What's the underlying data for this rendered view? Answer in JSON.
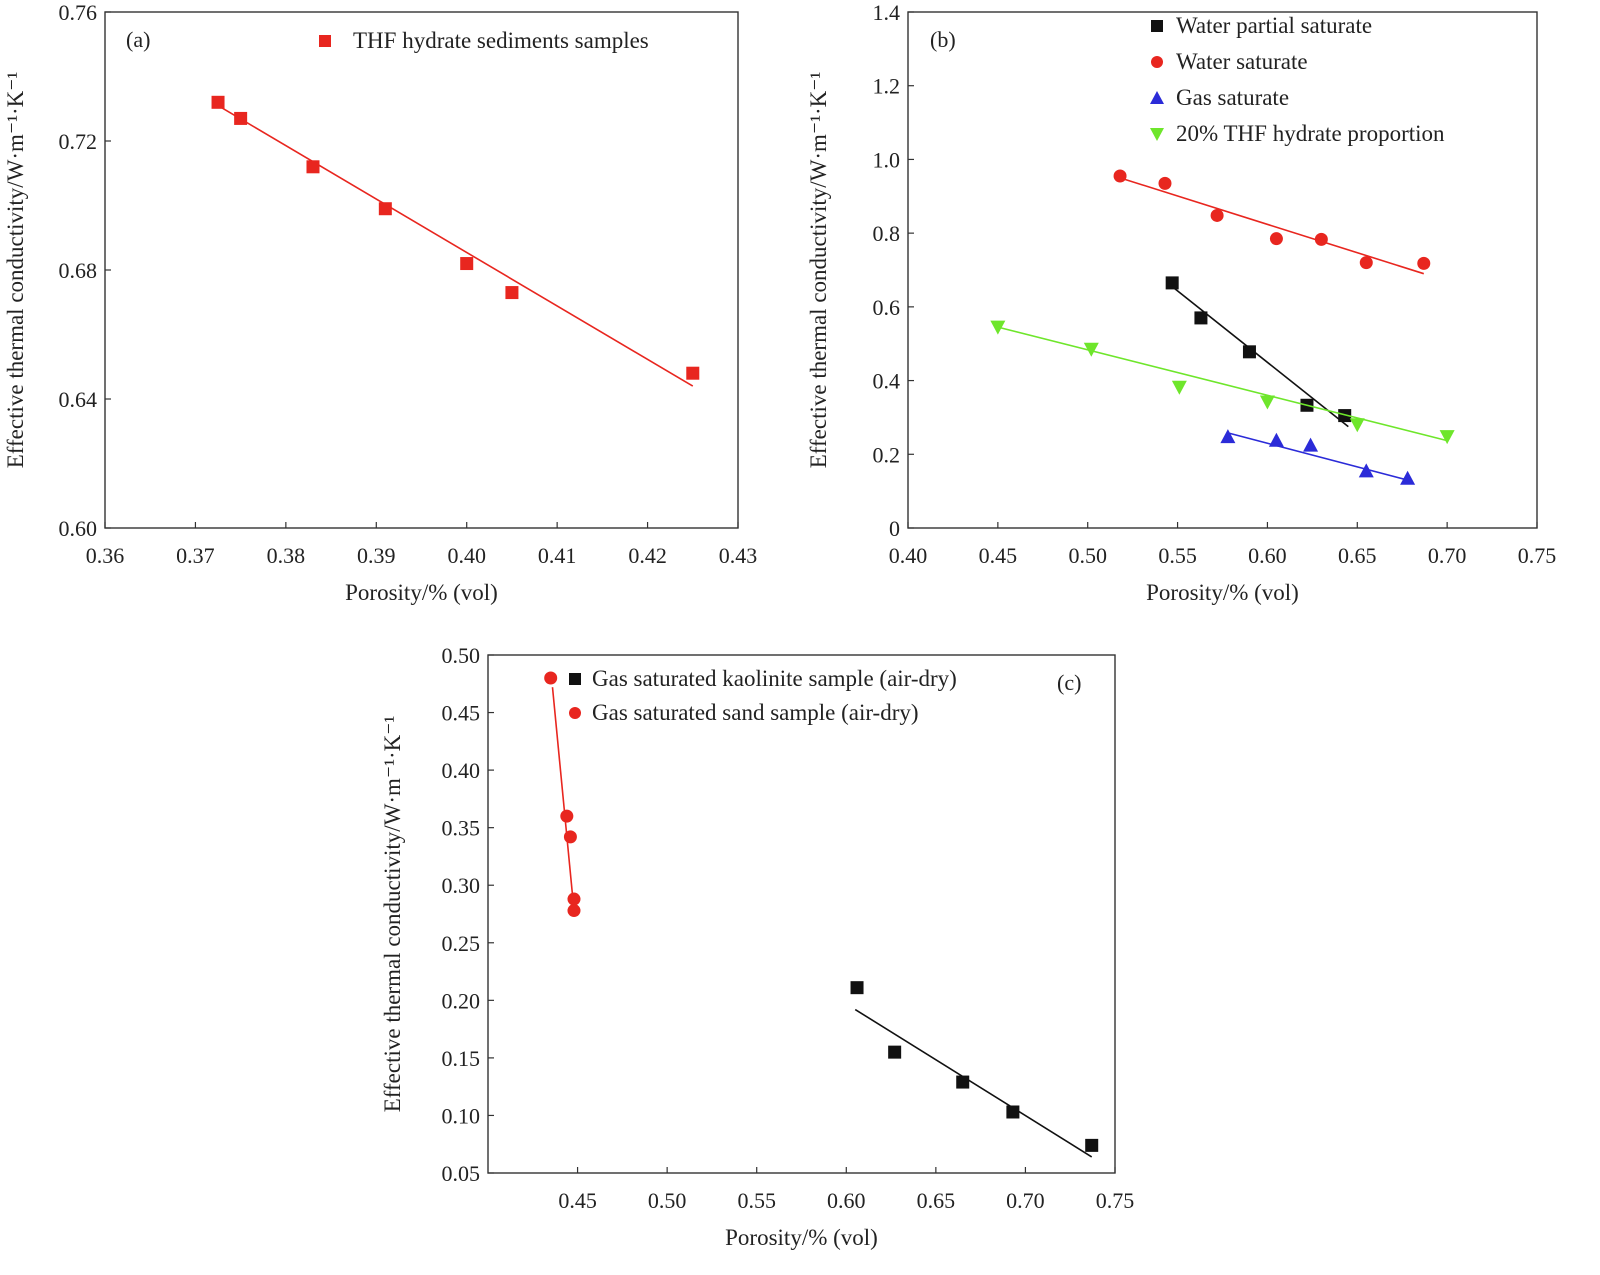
{
  "chart_data": [
    {
      "panel": "(a)",
      "type": "scatter",
      "xlabel": "Porosity/% (vol)",
      "ylabel": "Effective thermal conductivity/W·m⁻¹·K⁻¹",
      "xlim": [
        0.36,
        0.43
      ],
      "ylim": [
        0.6,
        0.76
      ],
      "xticks": [
        "0.36",
        "0.37",
        "0.38",
        "0.39",
        "0.40",
        "0.41",
        "0.42",
        "0.43"
      ],
      "yticks": [
        "0.60",
        "0.64",
        "0.68",
        "0.72",
        "0.76"
      ],
      "legend_position": "top-right",
      "series": [
        {
          "name": "THF hydrate sediments samples",
          "marker": "square",
          "color": "#e8261f",
          "x": [
            0.3725,
            0.375,
            0.383,
            0.391,
            0.4,
            0.405,
            0.425
          ],
          "y": [
            0.732,
            0.727,
            0.712,
            0.699,
            0.682,
            0.673,
            0.648
          ],
          "fit": [
            [
              0.3725,
              0.731
            ],
            [
              0.425,
              0.644
            ]
          ]
        }
      ]
    },
    {
      "panel": "(b)",
      "type": "scatter",
      "xlabel": "Porosity/% (vol)",
      "ylabel": "Effective thermal conductivity/W·m⁻¹·K⁻¹",
      "xlim": [
        0.4,
        0.75
      ],
      "ylim": [
        0,
        1.4
      ],
      "xticks": [
        "0.40",
        "0.45",
        "0.50",
        "0.55",
        "0.60",
        "0.65",
        "0.70",
        "0.75"
      ],
      "yticks": [
        "0",
        "0.2",
        "0.4",
        "0.6",
        "0.8",
        "1.0",
        "1.2",
        "1.4"
      ],
      "legend_position": "top-right",
      "series": [
        {
          "name": "Water partial saturate",
          "marker": "square",
          "color": "#111111",
          "x": [
            0.547,
            0.563,
            0.59,
            0.622,
            0.643
          ],
          "y": [
            0.665,
            0.57,
            0.478,
            0.333,
            0.305
          ],
          "fit": [
            [
              0.547,
              0.655
            ],
            [
              0.645,
              0.275
            ]
          ]
        },
        {
          "name": "Water saturate",
          "marker": "circle",
          "color": "#e8261f",
          "x": [
            0.518,
            0.543,
            0.572,
            0.605,
            0.63,
            0.655,
            0.687
          ],
          "y": [
            0.955,
            0.935,
            0.848,
            0.785,
            0.783,
            0.72,
            0.718
          ],
          "fit": [
            [
              0.518,
              0.95
            ],
            [
              0.687,
              0.69
            ]
          ]
        },
        {
          "name": "Gas saturate",
          "marker": "triangle-up",
          "color": "#2b2bd8",
          "x": [
            0.578,
            0.605,
            0.624,
            0.655,
            0.678
          ],
          "y": [
            0.248,
            0.238,
            0.225,
            0.155,
            0.135
          ],
          "fit": [
            [
              0.578,
              0.258
            ],
            [
              0.678,
              0.13
            ]
          ]
        },
        {
          "name": "20% THF hydrate proportion",
          "marker": "triangle-down",
          "color": "#6ee62b",
          "x": [
            0.45,
            0.502,
            0.551,
            0.6,
            0.65,
            0.7
          ],
          "y": [
            0.545,
            0.485,
            0.382,
            0.342,
            0.28,
            0.248
          ],
          "fit": [
            [
              0.45,
              0.545
            ],
            [
              0.7,
              0.237
            ]
          ]
        }
      ]
    },
    {
      "panel": "(c)",
      "type": "scatter",
      "xlabel": "Porosity/% (vol)",
      "ylabel": "Effective thermal conductivity/W·m⁻¹·K⁻¹",
      "xlim": [
        0.4,
        0.75
      ],
      "ylim": [
        0.05,
        0.5
      ],
      "xticks": [
        "0.45",
        "0.50",
        "0.55",
        "0.60",
        "0.65",
        "0.70",
        "0.75"
      ],
      "yticks": [
        "0.05",
        "0.10",
        "0.15",
        "0.20",
        "0.25",
        "0.30",
        "0.35",
        "0.40",
        "0.45",
        "0.50"
      ],
      "legend_position": "top-right",
      "series": [
        {
          "name": "Gas saturated kaolinite sample (air-dry)",
          "marker": "square",
          "color": "#111111",
          "x": [
            0.606,
            0.627,
            0.665,
            0.693,
            0.737
          ],
          "y": [
            0.211,
            0.155,
            0.129,
            0.103,
            0.074
          ],
          "fit": [
            [
              0.605,
              0.192
            ],
            [
              0.737,
              0.064
            ]
          ]
        },
        {
          "name": "Gas saturated sand sample (air-dry)",
          "marker": "circle",
          "color": "#e8261f",
          "x": [
            0.435,
            0.444,
            0.446,
            0.448,
            0.448
          ],
          "y": [
            0.48,
            0.36,
            0.342,
            0.288,
            0.278
          ],
          "fit": [
            [
              0.436,
              0.472
            ],
            [
              0.448,
              0.278
            ]
          ]
        }
      ]
    }
  ]
}
